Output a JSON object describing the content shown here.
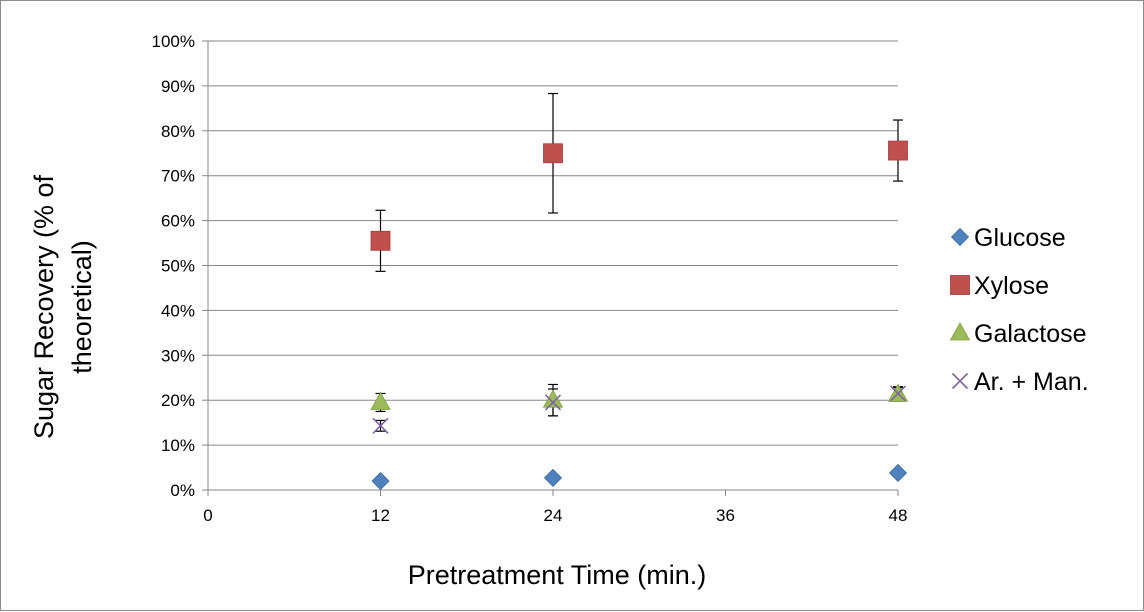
{
  "chart_data": {
    "type": "scatter",
    "xlabel": "Pretreatment Time (min.)",
    "ylabel_lines": [
      "Sugar Recovery (% of",
      "theoretical)"
    ],
    "xlim": [
      0,
      48
    ],
    "ylim": [
      0,
      100
    ],
    "x_ticks": [
      "0",
      "12",
      "24",
      "36",
      "48"
    ],
    "y_ticks": [
      "0%",
      "10%",
      "20%",
      "30%",
      "40%",
      "50%",
      "60%",
      "70%",
      "80%",
      "90%",
      "100%"
    ],
    "grid": "horizontal",
    "legend_position": "right",
    "series": [
      {
        "name": "Glucose",
        "marker": "diamond",
        "color": "#4f81bd",
        "points": [
          {
            "x": 12,
            "y": 2
          },
          {
            "x": 24,
            "y": 2.7
          },
          {
            "x": 48,
            "y": 3.8
          }
        ]
      },
      {
        "name": "Xylose",
        "marker": "square",
        "color": "#c0504d",
        "points": [
          {
            "x": 12,
            "y": 55.5,
            "err": 6.8
          },
          {
            "x": 24,
            "y": 75,
            "err": 13.3
          },
          {
            "x": 48,
            "y": 75.6,
            "err": 6.8
          }
        ]
      },
      {
        "name": "Galactose",
        "marker": "triangle",
        "color": "#9bbb59",
        "points": [
          {
            "x": 12,
            "y": 19.5,
            "err": 2
          },
          {
            "x": 24,
            "y": 20,
            "err": 3.5
          },
          {
            "x": 48,
            "y": 21.3,
            "err": 1.5
          }
        ]
      },
      {
        "name": "Ar. + Man.",
        "marker": "x",
        "color": "#8064a2",
        "points": [
          {
            "x": 12,
            "y": 14.3,
            "err": 1.2
          },
          {
            "x": 24,
            "y": 19.5,
            "err": 3
          },
          {
            "x": 48,
            "y": 21.5,
            "err": 1.5
          }
        ]
      }
    ]
  }
}
